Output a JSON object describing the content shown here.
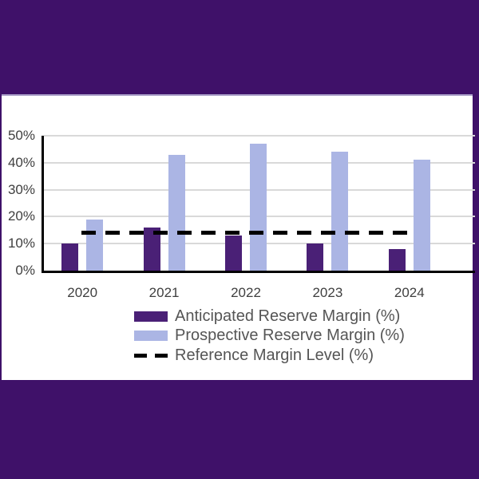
{
  "window": {
    "background_color": "#3F1169",
    "panel_color": "#FFFFFF"
  },
  "chart_data": {
    "type": "bar",
    "title": "",
    "xlabel": "",
    "ylabel": "",
    "categories": [
      "2020",
      "2021",
      "2022",
      "2023",
      "2024"
    ],
    "series": [
      {
        "name": "Anticipated Reserve Margin (%)",
        "kind": "bar",
        "color": "#4A2076",
        "values": [
          10,
          16,
          13,
          10,
          8
        ]
      },
      {
        "name": "Prospective Reserve Margin (%)",
        "kind": "bar",
        "color": "#ABB5E4",
        "values": [
          19,
          43,
          47,
          44,
          41
        ]
      },
      {
        "name": "Reference Margin Level (%)",
        "kind": "dashed-line",
        "color": "#000000",
        "values": [
          14,
          14,
          14,
          14,
          14
        ]
      }
    ],
    "ylim": [
      0,
      50
    ],
    "y_tick_step": 10,
    "y_tick_labels": [
      "0%",
      "10%",
      "20%",
      "30%",
      "40%",
      "50%"
    ],
    "grid": true,
    "gridline_color": "#D9D9D9",
    "axis_color": "#000000",
    "tick_label_color": "#3F3F3F",
    "legend_text_color": "#555555",
    "legend_position": "bottom-left"
  }
}
